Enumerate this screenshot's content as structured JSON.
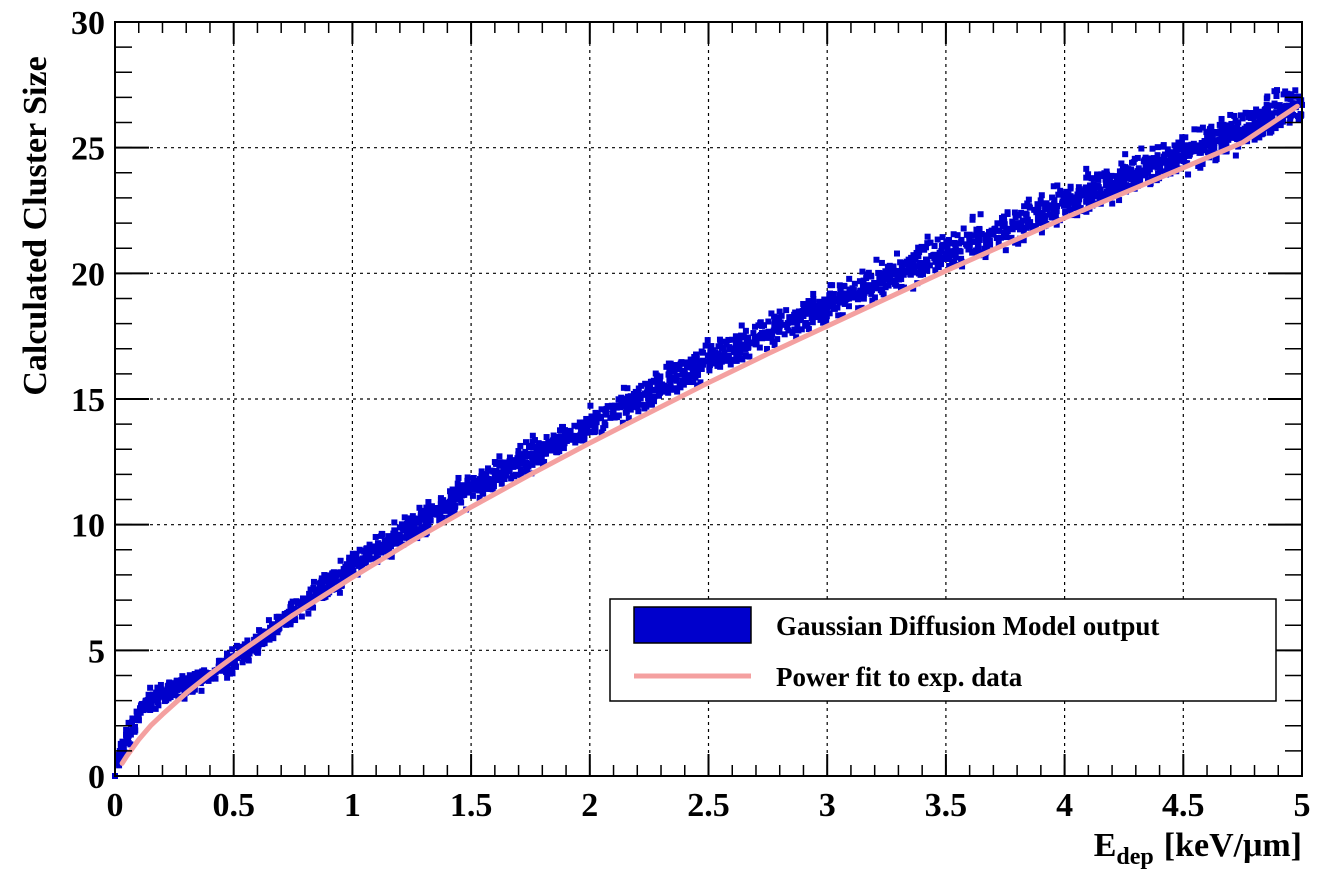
{
  "chart_data": {
    "type": "scatter",
    "xlabel_main": "E",
    "xlabel_sub": "dep",
    "xlabel_unit": "[keV/μm]",
    "ylabel": "Calculated Cluster Size",
    "xlim": [
      0,
      5
    ],
    "ylim": [
      0,
      30
    ],
    "x_ticks": [
      "0",
      "0.5",
      "1",
      "1.5",
      "2",
      "2.5",
      "3",
      "3.5",
      "4",
      "4.5",
      "5"
    ],
    "y_ticks": [
      "0",
      "5",
      "10",
      "15",
      "20",
      "25",
      "30"
    ],
    "grid": true,
    "legend_position": "bottom-right",
    "series": [
      {
        "name": "Gaussian Diffusion Model output",
        "kind": "scatter",
        "color": "#0000cc",
        "x": [
          0.0,
          0.02,
          0.05,
          0.1,
          0.15,
          0.2,
          0.3,
          0.4,
          0.5,
          0.6,
          0.7,
          0.8,
          0.9,
          1.0,
          1.1,
          1.2,
          1.3,
          1.4,
          1.5,
          1.6,
          1.7,
          1.8,
          1.9,
          2.0,
          2.1,
          2.2,
          2.3,
          2.4,
          2.5,
          2.6,
          2.7,
          2.8,
          2.9,
          3.0,
          3.1,
          3.2,
          3.3,
          3.4,
          3.5,
          3.6,
          3.7,
          3.8,
          3.9,
          4.0,
          4.1,
          4.2,
          4.3,
          4.4,
          4.5,
          4.6,
          4.7,
          4.8,
          4.9,
          5.0
        ],
        "y": [
          0.0,
          1.0,
          1.5,
          2.4,
          3.0,
          3.3,
          3.6,
          4.0,
          4.6,
          5.3,
          6.1,
          6.8,
          7.6,
          8.3,
          9.0,
          9.6,
          10.2,
          10.8,
          11.4,
          12.0,
          12.5,
          13.0,
          13.5,
          14.0,
          14.5,
          15.0,
          15.5,
          16.0,
          16.5,
          17.0,
          17.4,
          17.9,
          18.3,
          18.8,
          19.2,
          19.6,
          20.0,
          20.4,
          20.8,
          21.2,
          21.6,
          22.0,
          22.4,
          22.8,
          23.2,
          23.6,
          24.0,
          24.4,
          24.8,
          25.2,
          25.6,
          26.0,
          26.4,
          26.7
        ],
        "spread": 0.55
      },
      {
        "name": "Power fit to exp. data",
        "kind": "line",
        "color": "#f4a0a0",
        "x": [
          0.03,
          0.05,
          0.1,
          0.15,
          0.2,
          0.3,
          0.4,
          0.5,
          0.75,
          1.0,
          1.25,
          1.5,
          1.75,
          2.0,
          2.25,
          2.5,
          2.75,
          3.0,
          3.25,
          3.5,
          3.75,
          4.0,
          4.25,
          4.5,
          4.75,
          4.98
        ],
        "y": [
          0.5,
          0.8,
          1.45,
          2.0,
          2.45,
          3.3,
          4.05,
          4.75,
          6.4,
          7.9,
          9.35,
          10.7,
          12.0,
          13.25,
          14.45,
          15.65,
          16.8,
          17.9,
          19.0,
          20.1,
          21.15,
          22.2,
          23.2,
          24.2,
          25.2,
          26.65
        ]
      }
    ]
  }
}
